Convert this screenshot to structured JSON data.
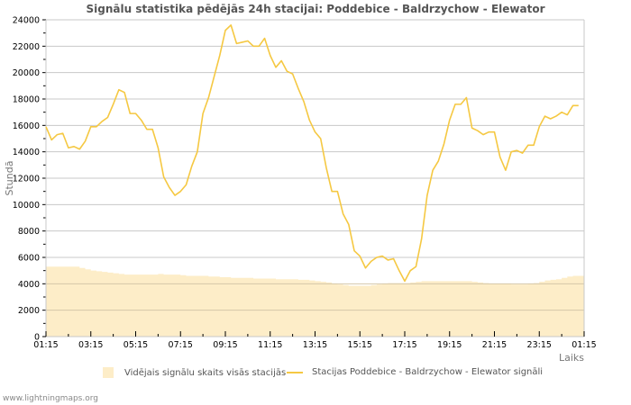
{
  "title": "Signālu statistika pēdējās 24h stacijai: Poddebice - Baldrzychow - Elewator",
  "credit": "www.lightningmaps.org",
  "colors": {
    "line": "#f5c842",
    "area": "#fdedc8",
    "grid": "#c8c8c8",
    "avg_grid": "#d4c7a8"
  },
  "legend": {
    "area_label": "Vidējais signālu skaits visās stacijās",
    "line_label": "Stacijas Poddebice - Baldrzychow - Elewator signāli"
  },
  "axes": {
    "ylabel": "Stundā",
    "xlabel": "Laiks",
    "yticks": [
      "0",
      "2000",
      "4000",
      "6000",
      "8000",
      "10000",
      "12000",
      "14000",
      "16000",
      "18000",
      "20000",
      "22000",
      "24000"
    ],
    "xticks": [
      "01:15",
      "03:15",
      "05:15",
      "07:15",
      "09:15",
      "11:15",
      "13:15",
      "15:15",
      "17:15",
      "19:15",
      "21:15",
      "23:15",
      "01:15"
    ]
  },
  "chart_data": {
    "type": "line",
    "title": "Signālu statistika pēdējās 24h stacijai: Poddebice - Baldrzychow - Elewator",
    "xlabel": "Laiks",
    "ylabel": "Stundā",
    "ylim": [
      0,
      24000
    ],
    "x_range": [
      "01:15",
      "01:15 (+1 day)"
    ],
    "grid": true,
    "legend_position": "bottom",
    "categories": [
      "01:15",
      "03:15",
      "05:15",
      "07:15",
      "09:15",
      "11:15",
      "13:15",
      "15:15",
      "17:15",
      "19:15",
      "21:15",
      "23:15",
      "01:15"
    ],
    "series": [
      {
        "name": "Stacijas Poddebice - Baldrzychow - Elewator signāli",
        "type": "line",
        "values": [
          15900,
          14900,
          15300,
          15400,
          14300,
          14400,
          14200,
          14800,
          15900,
          15900,
          16300,
          16600,
          17600,
          18700,
          18500,
          16900,
          16900,
          16400,
          15700,
          15700,
          14300,
          12100,
          11300,
          10700,
          11000,
          11500,
          12900,
          14000,
          16900,
          18100,
          19700,
          21300,
          23200,
          23600,
          22200,
          22300,
          22400,
          22000,
          22000,
          22600,
          21300,
          20400,
          20900,
          20100,
          19900,
          18800,
          17800,
          16400,
          15500,
          15000,
          12800,
          11000,
          11000,
          9300,
          8500,
          6500,
          6100,
          5200,
          5700,
          6000,
          6100,
          5800,
          5900,
          5000,
          4200,
          5000,
          5300,
          7400,
          10700,
          12600,
          13300,
          14600,
          16400,
          17600,
          17600,
          18100,
          15800,
          15600,
          15300,
          15500,
          15500,
          13600,
          12600,
          14000,
          14100,
          13900,
          14500,
          14500,
          15900,
          16700,
          16500,
          16700,
          17000,
          16800,
          17500,
          17500
        ]
      },
      {
        "name": "Vidējais signālu skaits visās stacijās",
        "type": "area",
        "values": [
          5300,
          5300,
          5300,
          5300,
          5300,
          5300,
          5200,
          5100,
          5000,
          4950,
          4900,
          4850,
          4800,
          4750,
          4700,
          4700,
          4700,
          4700,
          4700,
          4700,
          4750,
          4700,
          4700,
          4700,
          4650,
          4600,
          4600,
          4600,
          4600,
          4550,
          4550,
          4500,
          4500,
          4450,
          4450,
          4450,
          4450,
          4400,
          4400,
          4400,
          4400,
          4350,
          4350,
          4350,
          4350,
          4300,
          4300,
          4250,
          4200,
          4150,
          4100,
          4000,
          3950,
          3900,
          3850,
          3850,
          3850,
          3850,
          3900,
          3950,
          4000,
          4050,
          4050,
          4050,
          4050,
          4100,
          4150,
          4200,
          4200,
          4200,
          4200,
          4200,
          4200,
          4200,
          4200,
          4200,
          4150,
          4100,
          4050,
          4000,
          4000,
          4000,
          4000,
          3950,
          3950,
          3950,
          4000,
          4050,
          4150,
          4250,
          4300,
          4350,
          4450,
          4550,
          4600,
          4600
        ]
      }
    ]
  }
}
